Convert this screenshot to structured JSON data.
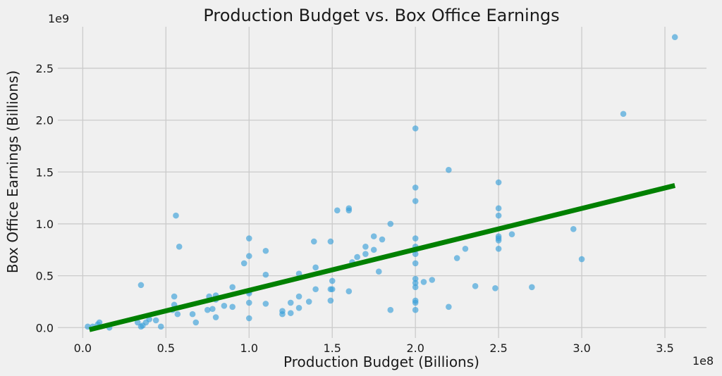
{
  "chart_data": {
    "type": "scatter",
    "title": "Production Budget vs. Box Office Earnings",
    "xlabel": "Production Budget (Billions)",
    "ylabel": "Box Office Earnings (Billions)",
    "x_offset_label": "1e8",
    "y_offset_label": "1e9",
    "xlim": [
      -0.15,
      3.75
    ],
    "ylim": [
      -0.1,
      2.9
    ],
    "x_ticks": [
      0.0,
      0.5,
      1.0,
      1.5,
      2.0,
      2.5,
      3.0,
      3.5
    ],
    "x_tick_labels": [
      "0.0",
      "0.5",
      "1.0",
      "1.5",
      "2.0",
      "2.5",
      "3.0",
      "3.5"
    ],
    "y_ticks": [
      0.0,
      0.5,
      1.0,
      1.5,
      2.0,
      2.5
    ],
    "y_tick_labels": [
      "0.0",
      "0.5",
      "1.0",
      "1.5",
      "2.0",
      "2.5"
    ],
    "grid": true,
    "point_color": "#3a9fd8",
    "trend_color": "#008000",
    "background": "#f0f0f0",
    "trend_line": {
      "x": [
        0.04,
        3.56
      ],
      "y": [
        -0.02,
        1.37
      ]
    },
    "points": [
      [
        0.03,
        0.01
      ],
      [
        0.06,
        0.01
      ],
      [
        0.09,
        0.03
      ],
      [
        0.1,
        0.05
      ],
      [
        0.16,
        0.0
      ],
      [
        0.33,
        0.05
      ],
      [
        0.35,
        0.41
      ],
      [
        0.35,
        0.01
      ],
      [
        0.36,
        0.02
      ],
      [
        0.38,
        0.05
      ],
      [
        0.4,
        0.08
      ],
      [
        0.44,
        0.07
      ],
      [
        0.47,
        0.01
      ],
      [
        0.54,
        0.17
      ],
      [
        0.55,
        0.22
      ],
      [
        0.55,
        0.3
      ],
      [
        0.56,
        1.08
      ],
      [
        0.57,
        0.13
      ],
      [
        0.58,
        0.78
      ],
      [
        0.66,
        0.13
      ],
      [
        0.68,
        0.05
      ],
      [
        0.75,
        0.17
      ],
      [
        0.76,
        0.3
      ],
      [
        0.78,
        0.18
      ],
      [
        0.8,
        0.1
      ],
      [
        0.8,
        0.27
      ],
      [
        0.8,
        0.31
      ],
      [
        0.85,
        0.21
      ],
      [
        0.9,
        0.2
      ],
      [
        0.9,
        0.39
      ],
      [
        0.97,
        0.62
      ],
      [
        1.0,
        0.09
      ],
      [
        1.0,
        0.24
      ],
      [
        1.0,
        0.33
      ],
      [
        1.0,
        0.35
      ],
      [
        1.0,
        0.69
      ],
      [
        1.0,
        0.86
      ],
      [
        1.1,
        0.23
      ],
      [
        1.1,
        0.51
      ],
      [
        1.1,
        0.74
      ],
      [
        1.2,
        0.13
      ],
      [
        1.2,
        0.16
      ],
      [
        1.25,
        0.14
      ],
      [
        1.25,
        0.24
      ],
      [
        1.3,
        0.19
      ],
      [
        1.3,
        0.3
      ],
      [
        1.3,
        0.52
      ],
      [
        1.36,
        0.25
      ],
      [
        1.39,
        0.83
      ],
      [
        1.4,
        0.37
      ],
      [
        1.4,
        0.58
      ],
      [
        1.49,
        0.26
      ],
      [
        1.49,
        0.37
      ],
      [
        1.49,
        0.83
      ],
      [
        1.5,
        0.37
      ],
      [
        1.5,
        0.45
      ],
      [
        1.53,
        1.13
      ],
      [
        1.6,
        0.35
      ],
      [
        1.6,
        1.13
      ],
      [
        1.6,
        1.15
      ],
      [
        1.62,
        0.63
      ],
      [
        1.65,
        0.68
      ],
      [
        1.7,
        0.71
      ],
      [
        1.7,
        0.78
      ],
      [
        1.75,
        0.75
      ],
      [
        1.75,
        0.88
      ],
      [
        1.78,
        0.54
      ],
      [
        1.8,
        0.85
      ],
      [
        1.85,
        0.17
      ],
      [
        1.85,
        1.0
      ],
      [
        2.0,
        0.17
      ],
      [
        2.0,
        0.24
      ],
      [
        2.0,
        0.26
      ],
      [
        2.0,
        0.39
      ],
      [
        2.0,
        0.43
      ],
      [
        2.0,
        0.47
      ],
      [
        2.0,
        0.62
      ],
      [
        2.0,
        0.71
      ],
      [
        2.0,
        0.75
      ],
      [
        2.0,
        0.78
      ],
      [
        2.0,
        0.86
      ],
      [
        2.0,
        1.22
      ],
      [
        2.0,
        1.35
      ],
      [
        2.0,
        1.92
      ],
      [
        2.05,
        0.44
      ],
      [
        2.1,
        0.46
      ],
      [
        2.2,
        0.2
      ],
      [
        2.2,
        1.52
      ],
      [
        2.25,
        0.67
      ],
      [
        2.3,
        0.76
      ],
      [
        2.36,
        0.4
      ],
      [
        2.48,
        0.38
      ],
      [
        2.5,
        0.76
      ],
      [
        2.5,
        0.84
      ],
      [
        2.5,
        0.86
      ],
      [
        2.5,
        0.88
      ],
      [
        2.5,
        1.08
      ],
      [
        2.5,
        1.15
      ],
      [
        2.5,
        1.4
      ],
      [
        2.58,
        0.9
      ],
      [
        2.7,
        0.39
      ],
      [
        2.95,
        0.95
      ],
      [
        3.0,
        0.66
      ],
      [
        3.25,
        2.06
      ],
      [
        3.56,
        2.8
      ]
    ]
  }
}
